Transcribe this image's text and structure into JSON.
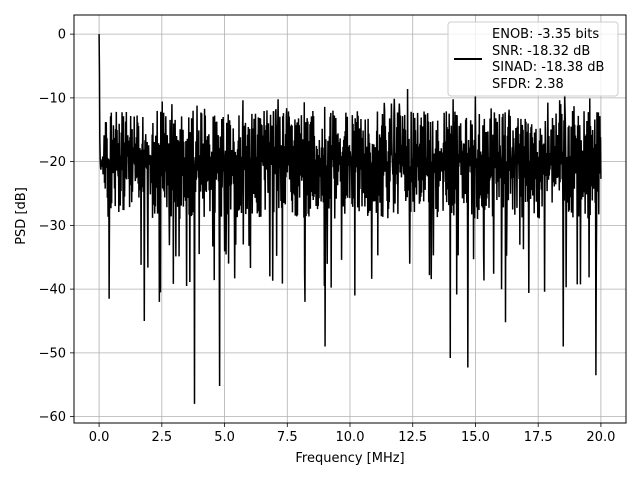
{
  "chart_data": {
    "type": "line",
    "xlabel": "Frequency [MHz]",
    "ylabel": "PSD [dB]",
    "xlim": [
      -1.0,
      21.0
    ],
    "ylim": [
      -61,
      3
    ],
    "x_ticks": [
      0.0,
      2.5,
      5.0,
      7.5,
      10.0,
      12.5,
      15.0,
      17.5,
      20.0
    ],
    "x_tick_labels": [
      "0.0",
      "2.5",
      "5.0",
      "7.5",
      "10.0",
      "12.5",
      "15.0",
      "17.5",
      "20.0"
    ],
    "y_ticks": [
      0,
      -10,
      -20,
      -30,
      -40,
      -50,
      -60
    ],
    "y_tick_labels": [
      "0",
      "−10",
      "−20",
      "−30",
      "−40",
      "−50",
      "−60"
    ],
    "grid": true,
    "legend_position": "top-right",
    "legend_lines": [
      "ENOB: -3.35 bits",
      "SNR: -18.32 dB",
      "SINAD: -18.38 dB",
      "SFDR: 2.38"
    ],
    "series": [
      {
        "color": "#000000",
        "x_range": [
          0.0,
          20.0
        ],
        "noise_band_db": [
          -29,
          -12
        ],
        "baseline_db": -22,
        "peaks": [
          {
            "x": 0.0,
            "y": 0.0
          },
          {
            "x": 0.02,
            "y": -6.0
          },
          {
            "x": 12.3,
            "y": -8.6
          },
          {
            "x": 19.8,
            "y": -12.0
          }
        ],
        "dips": [
          {
            "x": 0.4,
            "y": -41.5
          },
          {
            "x": 1.8,
            "y": -45.0
          },
          {
            "x": 2.4,
            "y": -42.0
          },
          {
            "x": 3.8,
            "y": -58.0
          },
          {
            "x": 4.8,
            "y": -55.2
          },
          {
            "x": 6.8,
            "y": -38.0
          },
          {
            "x": 8.2,
            "y": -42.0
          },
          {
            "x": 9.0,
            "y": -49.0
          },
          {
            "x": 10.2,
            "y": -41.0
          },
          {
            "x": 14.0,
            "y": -50.8
          },
          {
            "x": 14.7,
            "y": -52.3
          },
          {
            "x": 16.2,
            "y": -45.2
          },
          {
            "x": 18.5,
            "y": -49.0
          },
          {
            "x": 19.8,
            "y": -53.5
          }
        ]
      }
    ]
  },
  "colors": {
    "line": "#000000",
    "grid": "#b0b0b0",
    "axes": "#000000",
    "background": "#ffffff"
  }
}
